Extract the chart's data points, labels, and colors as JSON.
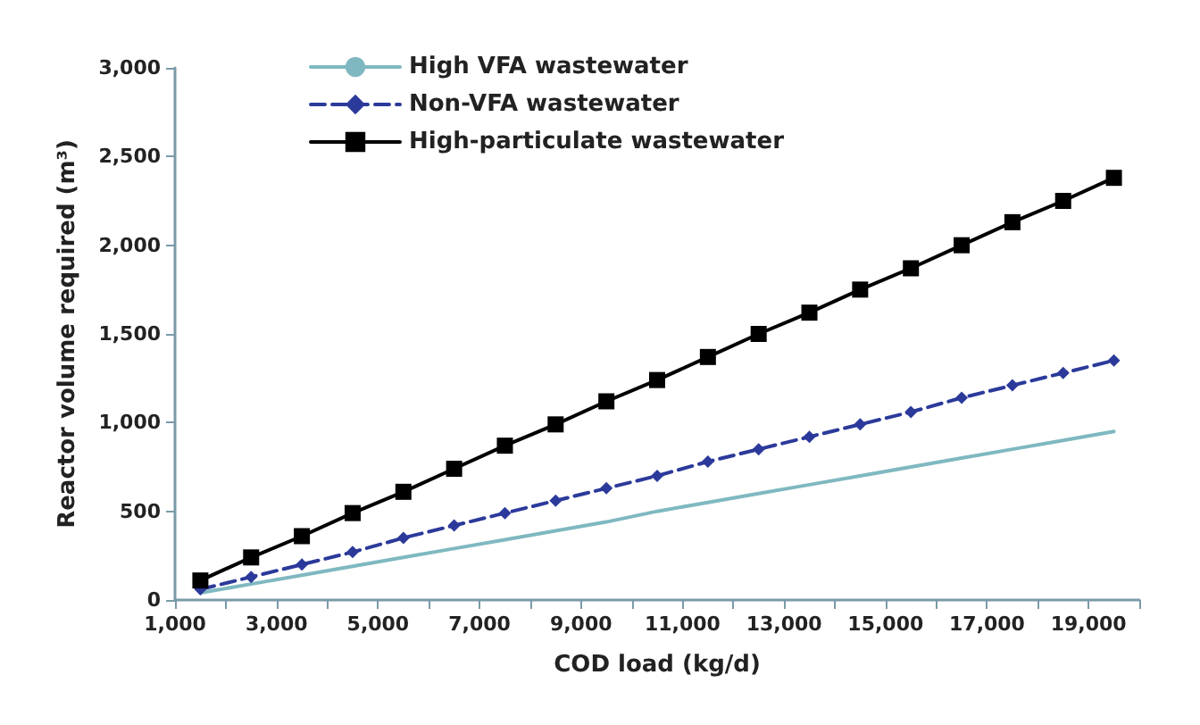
{
  "chart_data": {
    "type": "line",
    "xlabel": "COD load (kg/d)",
    "ylabel": "Reactor volume required (m³)",
    "x": [
      1500,
      2500,
      3500,
      4500,
      5500,
      6500,
      7500,
      8500,
      9500,
      10500,
      11500,
      12500,
      13500,
      14500,
      15500,
      16500,
      17500,
      18500,
      19500
    ],
    "series": [
      {
        "name": "High VFA wastewater",
        "color": "#7fb8c0",
        "marker": "none",
        "line_style": "solid",
        "values": [
          40,
          90,
          140,
          190,
          240,
          290,
          340,
          390,
          440,
          500,
          550,
          600,
          650,
          700,
          750,
          800,
          850,
          900,
          950
        ]
      },
      {
        "name": "Non-VFA wastewater",
        "color": "#2b3a9a",
        "marker": "diamond",
        "line_style": "dashed",
        "values": [
          60,
          130,
          200,
          270,
          350,
          420,
          490,
          560,
          630,
          700,
          780,
          850,
          920,
          990,
          1060,
          1140,
          1210,
          1280,
          1350
        ]
      },
      {
        "name": "High-particulate wastewater",
        "color": "#000000",
        "marker": "square",
        "line_style": "solid",
        "values": [
          110,
          240,
          360,
          490,
          610,
          740,
          870,
          990,
          1120,
          1240,
          1370,
          1500,
          1620,
          1750,
          1870,
          2000,
          2130,
          2250,
          2380
        ]
      }
    ],
    "xlim": [
      1000,
      20000
    ],
    "xticks": [
      {
        "value": 1000,
        "label": "1,000"
      },
      {
        "value": 2000,
        "label": null
      },
      {
        "value": 3000,
        "label": "3,000"
      },
      {
        "value": 4000,
        "label": null
      },
      {
        "value": 5000,
        "label": "5,000"
      },
      {
        "value": 6000,
        "label": null
      },
      {
        "value": 7000,
        "label": "7,000"
      },
      {
        "value": 8000,
        "label": null
      },
      {
        "value": 9000,
        "label": "9,000"
      },
      {
        "value": 10000,
        "label": null
      },
      {
        "value": 11000,
        "label": "11,000"
      },
      {
        "value": 12000,
        "label": null
      },
      {
        "value": 13000,
        "label": "13,000"
      },
      {
        "value": 14000,
        "label": null
      },
      {
        "value": 15000,
        "label": "15,000"
      },
      {
        "value": 16000,
        "label": null
      },
      {
        "value": 17000,
        "label": "17,000"
      },
      {
        "value": 18000,
        "label": null
      },
      {
        "value": 19000,
        "label": "19,000"
      },
      {
        "value": 20000,
        "label": null
      }
    ],
    "ylim": [
      0,
      3000
    ],
    "yticks": [
      0,
      500,
      {
        "value": 1000,
        "label": "1,000"
      },
      {
        "value": 1500,
        "label": "1,500"
      },
      {
        "value": 2000,
        "label": "2,000"
      },
      {
        "value": 2500,
        "label": "2,500"
      },
      {
        "value": 3000,
        "label": "3,000"
      }
    ],
    "grid": false,
    "legend": "top left"
  }
}
